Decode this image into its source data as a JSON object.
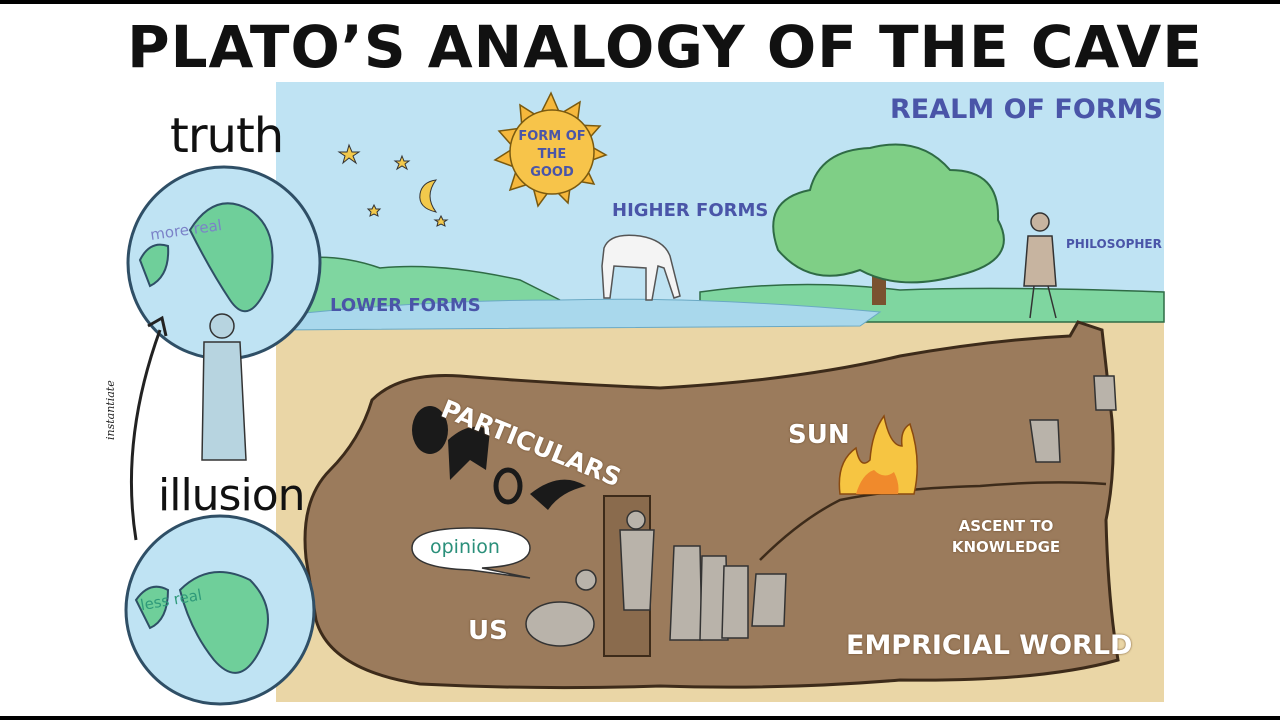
{
  "title": "PLATO’S ANALOGY OF THE CAVE",
  "labels": {
    "truth": "truth",
    "illusion": "illusion",
    "instantiate": "instantiate",
    "more_real": "more real",
    "less_real": "less real",
    "realm_of_forms": "REALM OF FORMS",
    "form_of_the_good": "FORM OF THE GOOD",
    "higher_forms": "HIGHER FORMS",
    "lower_forms": "LOWER FORMS",
    "philosopher": "PHILOSOPHER",
    "particulars": "PARTICULARS",
    "opinion": "opinion",
    "us": "US",
    "sun": "SUN",
    "ascent_to_knowledge": "ASCENT TO KNOWLEDGE",
    "empirical_world": "EMPRICIAL WORLD"
  },
  "colors": {
    "sky": "#bfe3f3",
    "grass": "#7fd6a0",
    "water": "#a9d8ec",
    "ground": "#ead6a6",
    "cave": "#9b7b5c",
    "sun": "#f6b83c",
    "label_blue": "#4a55a8"
  },
  "icons": [
    "sun-icon",
    "moon-icon",
    "star-icon",
    "tree-icon",
    "horse-icon",
    "globe-icon",
    "fire-icon",
    "arrow-icon"
  ]
}
